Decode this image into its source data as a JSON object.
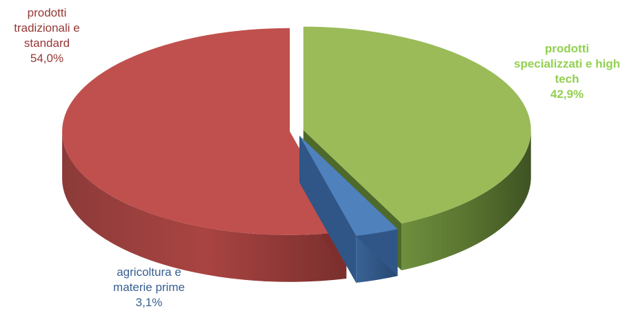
{
  "chart_data": {
    "type": "pie",
    "style": "3d-exploded",
    "title": "",
    "slices": [
      {
        "label_lines": [
          "prodotti",
          "tradizionali e",
          "standard"
        ],
        "value": 54.0,
        "value_text": "54,0%",
        "color": "#c0504d",
        "label_color": "#953735",
        "label_weight": "normal"
      },
      {
        "label_lines": [
          "prodotti",
          "specializzati e high",
          "tech"
        ],
        "value": 42.9,
        "value_text": "42,9%",
        "color": "#9bbb59",
        "label_color": "#92d050",
        "label_weight": "bold"
      },
      {
        "label_lines": [
          "agricoltura e",
          "materie prime"
        ],
        "value": 3.1,
        "value_text": "3,1%",
        "color": "#4f81bd",
        "label_color": "#376092",
        "label_weight": "normal"
      }
    ]
  }
}
